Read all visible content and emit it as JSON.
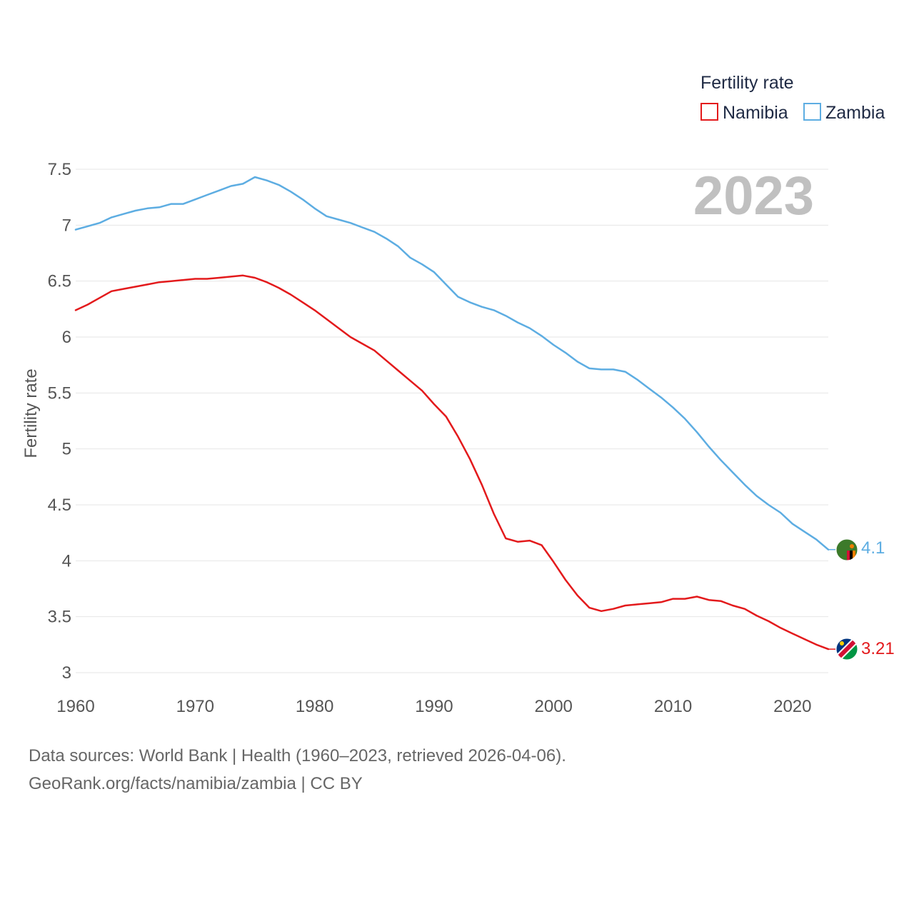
{
  "chart_data": {
    "type": "line",
    "title": "",
    "year_label": "2023",
    "xlabel": "",
    "ylabel": "Fertility rate",
    "xlim": [
      1960,
      2023
    ],
    "ylim": [
      3,
      7.5
    ],
    "x_ticks": [
      1960,
      1970,
      1980,
      1990,
      2000,
      2010,
      2020
    ],
    "y_ticks": [
      3,
      3.5,
      4,
      4.5,
      5,
      5.5,
      6,
      6.5,
      7,
      7.5
    ],
    "y_tick_labels": [
      "3",
      "3.5",
      "4",
      "4.5",
      "5",
      "5.5",
      "6",
      "6.5",
      "7",
      "7.5"
    ],
    "grid": true,
    "legend": {
      "title": "Fertility rate",
      "position": "top-right",
      "entries": [
        "Namibia",
        "Zambia"
      ]
    },
    "x": [
      1960,
      1961,
      1962,
      1963,
      1964,
      1965,
      1966,
      1967,
      1968,
      1969,
      1970,
      1971,
      1972,
      1973,
      1974,
      1975,
      1976,
      1977,
      1978,
      1979,
      1980,
      1981,
      1982,
      1983,
      1984,
      1985,
      1986,
      1987,
      1988,
      1989,
      1990,
      1991,
      1992,
      1993,
      1994,
      1995,
      1996,
      1997,
      1998,
      1999,
      2000,
      2001,
      2002,
      2003,
      2004,
      2005,
      2006,
      2007,
      2008,
      2009,
      2010,
      2011,
      2012,
      2013,
      2014,
      2015,
      2016,
      2017,
      2018,
      2019,
      2020,
      2021,
      2022,
      2023
    ],
    "series": [
      {
        "name": "Namibia",
        "color": "#e31a1c",
        "end_label": "3.21",
        "flag": "namibia-flag",
        "values": [
          6.24,
          6.29,
          6.35,
          6.41,
          6.43,
          6.45,
          6.47,
          6.49,
          6.5,
          6.51,
          6.52,
          6.52,
          6.53,
          6.54,
          6.55,
          6.53,
          6.49,
          6.44,
          6.38,
          6.31,
          6.24,
          6.16,
          6.08,
          6.0,
          5.94,
          5.88,
          5.79,
          5.7,
          5.61,
          5.52,
          5.4,
          5.29,
          5.11,
          4.91,
          4.68,
          4.42,
          4.2,
          4.17,
          4.18,
          4.14,
          3.99,
          3.83,
          3.69,
          3.58,
          3.55,
          3.57,
          3.6,
          3.61,
          3.62,
          3.63,
          3.66,
          3.66,
          3.68,
          3.65,
          3.64,
          3.6,
          3.57,
          3.51,
          3.46,
          3.4,
          3.35,
          3.3,
          3.25,
          3.21
        ]
      },
      {
        "name": "Zambia",
        "color": "#5dade2",
        "end_label": "4.1",
        "flag": "zambia-flag",
        "values": [
          6.96,
          6.99,
          7.02,
          7.07,
          7.1,
          7.13,
          7.15,
          7.16,
          7.19,
          7.19,
          7.23,
          7.27,
          7.31,
          7.35,
          7.37,
          7.43,
          7.4,
          7.36,
          7.3,
          7.23,
          7.15,
          7.08,
          7.05,
          7.02,
          6.98,
          6.94,
          6.88,
          6.81,
          6.71,
          6.65,
          6.58,
          6.47,
          6.36,
          6.31,
          6.27,
          6.24,
          6.19,
          6.13,
          6.08,
          6.01,
          5.93,
          5.86,
          5.78,
          5.72,
          5.71,
          5.71,
          5.69,
          5.62,
          5.54,
          5.46,
          5.37,
          5.27,
          5.15,
          5.02,
          4.9,
          4.79,
          4.68,
          4.58,
          4.5,
          4.43,
          4.33,
          4.26,
          4.19,
          4.1
        ]
      }
    ]
  },
  "footer": {
    "source": "Data sources: World Bank | Health (1960–2023, retrieved 2026-04-06).",
    "link": "GeoRank.org/facts/namibia/zambia | CC BY"
  }
}
